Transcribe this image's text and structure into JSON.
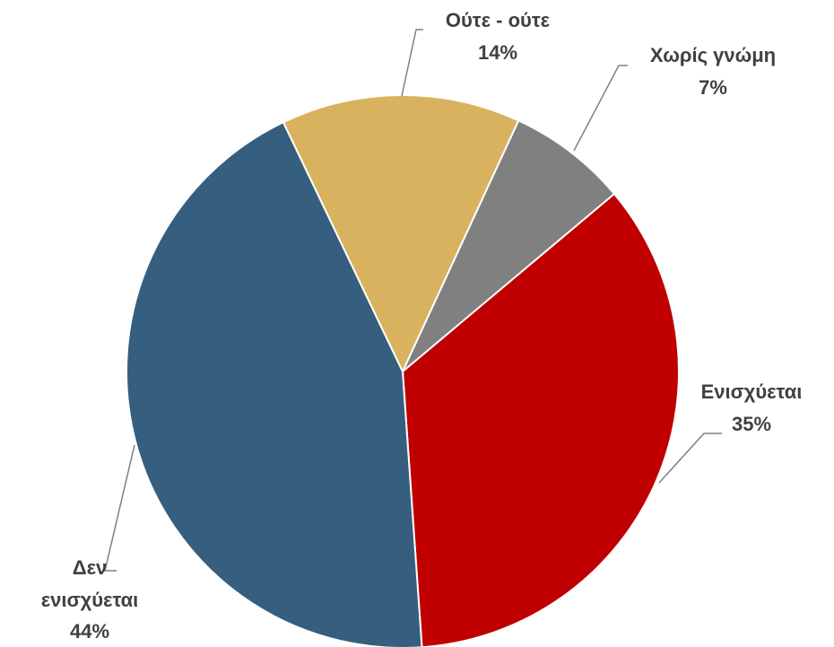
{
  "chart_data": {
    "type": "pie",
    "categories": [
      "Ενισχύεται",
      "Δεν ενισχύεται",
      "Ούτε - ούτε",
      "Χωρίς γνώμη"
    ],
    "values": [
      35,
      44,
      14,
      7
    ],
    "value_labels": [
      "35%",
      "44%",
      "14%",
      "7%"
    ],
    "colors": [
      "#c00000",
      "#365e7f",
      "#d8b25e",
      "#808080"
    ]
  }
}
